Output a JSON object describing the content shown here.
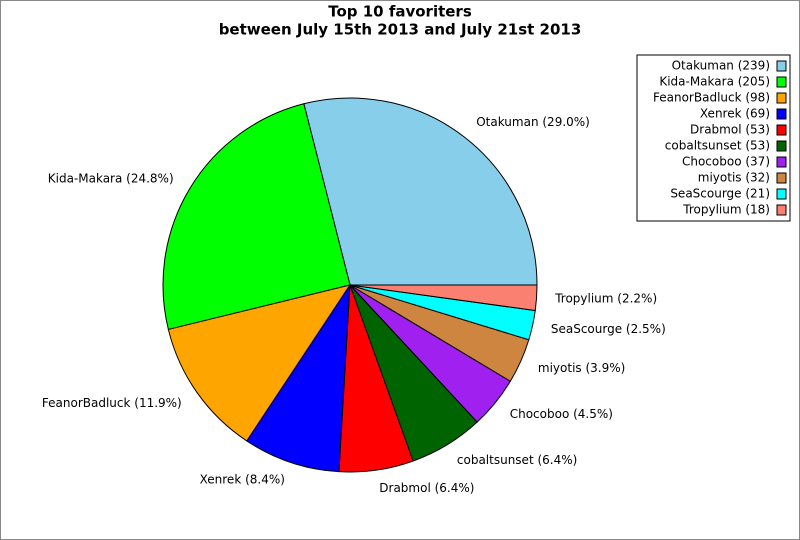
{
  "chart_data": {
    "type": "pie",
    "title": "Top 10 favoriters",
    "subtitle": "between July 15th 2013 and July 21st 2013",
    "values": [
      239,
      205,
      98,
      69,
      53,
      53,
      37,
      32,
      21,
      18
    ],
    "slice_labels": [
      "Otakuman (29.0%)",
      "Kida-Makara (24.8%)",
      "FeanorBadluck (11.9%)",
      "Xenrek (8.4%)",
      "Drabmol (6.4%)",
      "cobaltsunset (6.4%)",
      "Chocoboo (4.5%)",
      "miyotis (3.9%)",
      "SeaScourge (2.5%)",
      "Tropylium (2.2%)"
    ],
    "value_labels": [
      "Otakuman (239)",
      "Kida-Makara (205)",
      "FeanorBadluck (98)",
      "Xenrek (69)",
      "Drabmol (53)",
      "cobaltsunset (53)",
      "Chocoboo (37)",
      "miyotis (32)",
      "SeaScourge (21)",
      "Tropylium (18)"
    ],
    "colors": [
      "#87ceeb",
      "#00ff00",
      "#ffa500",
      "#0000ff",
      "#ff0000",
      "#006400",
      "#a020f0",
      "#cd853f",
      "#00ffff",
      "#fa8072"
    ],
    "legend": "upper right"
  }
}
